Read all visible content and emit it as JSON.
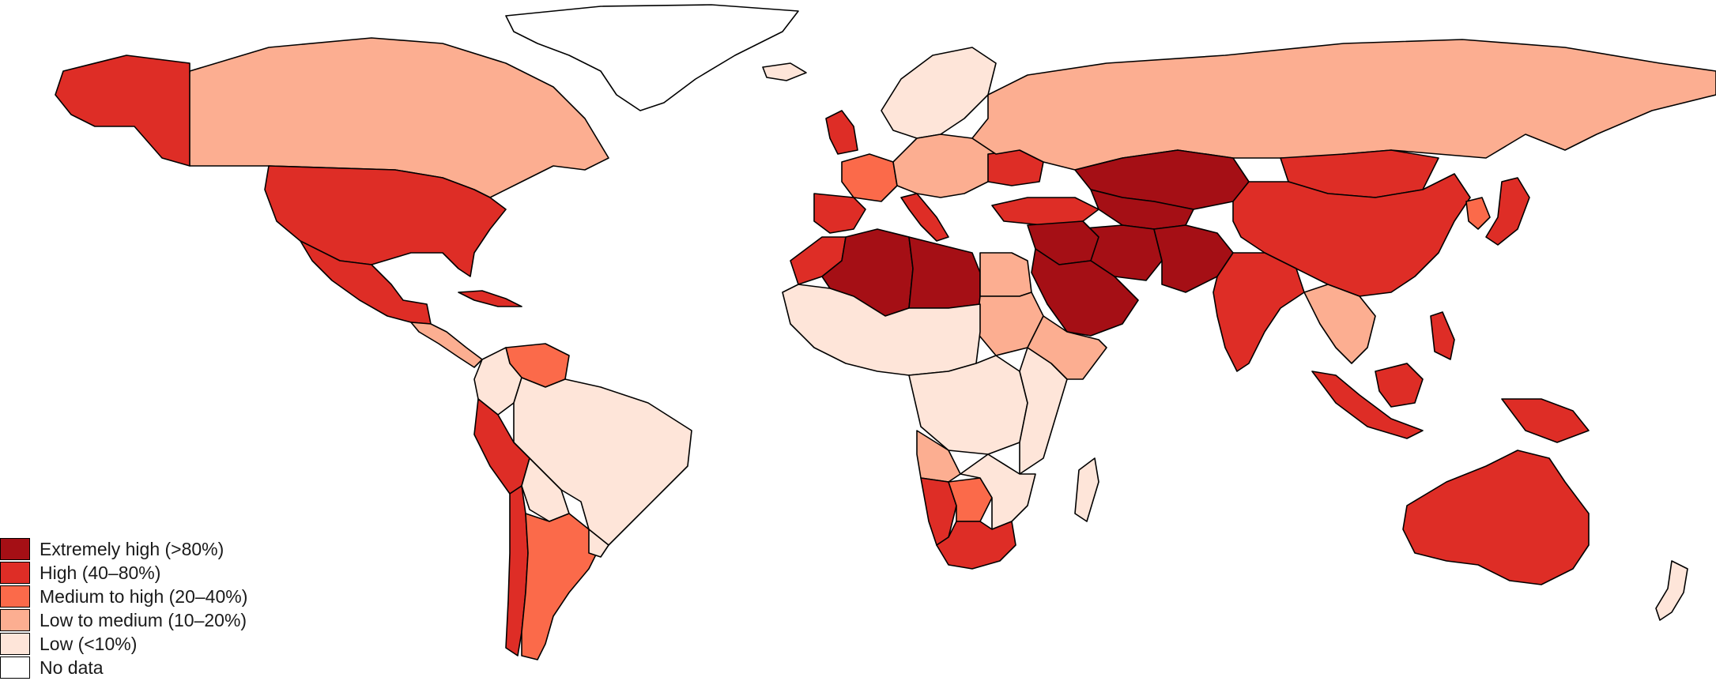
{
  "legend": {
    "items": [
      {
        "label": "Extremely high (>80%)",
        "color": "#a50f15"
      },
      {
        "label": "High (40–80%)",
        "color": "#de2d26"
      },
      {
        "label": "Medium to high (20–40%)",
        "color": "#fb6a4a"
      },
      {
        "label": "Low to medium (10–20%)",
        "color": "#fcae91"
      },
      {
        "label": "Low (<10%)",
        "color": "#fee5d9"
      },
      {
        "label": "No data",
        "color": "#ffffff"
      }
    ]
  },
  "regions": [
    {
      "name": "greenland",
      "category": "No data"
    },
    {
      "name": "alaska",
      "category": "High (40–80%)"
    },
    {
      "name": "canada",
      "category": "Low to medium (10–20%)"
    },
    {
      "name": "united-states",
      "category": "High (40–80%)"
    },
    {
      "name": "mexico",
      "category": "High (40–80%)"
    },
    {
      "name": "central-america",
      "category": "Low to medium (10–20%)"
    },
    {
      "name": "cuba",
      "category": "High (40–80%)"
    },
    {
      "name": "venezuela",
      "category": "Medium to high (20–40%)"
    },
    {
      "name": "colombia",
      "category": "Low (<10%)"
    },
    {
      "name": "brazil",
      "category": "Low (<10%)"
    },
    {
      "name": "peru",
      "category": "High (40–80%)"
    },
    {
      "name": "bolivia",
      "category": "Low (<10%)"
    },
    {
      "name": "chile",
      "category": "High (40–80%)"
    },
    {
      "name": "argentina",
      "category": "Medium to high (20–40%)"
    },
    {
      "name": "uruguay",
      "category": "Low (<10%)"
    },
    {
      "name": "iceland",
      "category": "Low (<10%)"
    },
    {
      "name": "united-kingdom",
      "category": "High (40–80%)"
    },
    {
      "name": "scandinavia",
      "category": "Low (<10%)"
    },
    {
      "name": "france",
      "category": "Medium to high (20–40%)"
    },
    {
      "name": "iberia",
      "category": "High (40–80%)"
    },
    {
      "name": "central-europe",
      "category": "Low to medium (10–20%)"
    },
    {
      "name": "italy",
      "category": "High (40–80%)"
    },
    {
      "name": "ukraine",
      "category": "High (40–80%)"
    },
    {
      "name": "russia",
      "category": "Low to medium (10–20%)"
    },
    {
      "name": "turkey",
      "category": "High (40–80%)"
    },
    {
      "name": "kazakhstan",
      "category": "Extremely high (>80%)"
    },
    {
      "name": "central-asia",
      "category": "Extremely high (>80%)"
    },
    {
      "name": "iran",
      "category": "Extremely high (>80%)"
    },
    {
      "name": "afghanistan-pakistan",
      "category": "Extremely high (>80%)"
    },
    {
      "name": "arabian-peninsula",
      "category": "Extremely high (>80%)"
    },
    {
      "name": "iraq-syria",
      "category": "Extremely high (>80%)"
    },
    {
      "name": "mongolia",
      "category": "High (40–80%)"
    },
    {
      "name": "china",
      "category": "High (40–80%)"
    },
    {
      "name": "india",
      "category": "High (40–80%)"
    },
    {
      "name": "japan",
      "category": "High (40–80%)"
    },
    {
      "name": "korea",
      "category": "Medium to high (20–40%)"
    },
    {
      "name": "mainland-southeast-asia",
      "category": "Low to medium (10–20%)"
    },
    {
      "name": "philippines",
      "category": "High (40–80%)"
    },
    {
      "name": "sumatra-java",
      "category": "High (40–80%)"
    },
    {
      "name": "borneo",
      "category": "High (40–80%)"
    },
    {
      "name": "new-guinea",
      "category": "High (40–80%)"
    },
    {
      "name": "australia",
      "category": "High (40–80%)"
    },
    {
      "name": "new-zealand",
      "category": "Low (<10%)"
    },
    {
      "name": "morocco",
      "category": "High (40–80%)"
    },
    {
      "name": "algeria",
      "category": "Extremely high (>80%)"
    },
    {
      "name": "libya",
      "category": "Extremely high (>80%)"
    },
    {
      "name": "egypt",
      "category": "Low to medium (10–20%)"
    },
    {
      "name": "sudan",
      "category": "Low to medium (10–20%)"
    },
    {
      "name": "sahel-west-africa",
      "category": "Low (<10%)"
    },
    {
      "name": "central-africa",
      "category": "Low (<10%)"
    },
    {
      "name": "east-africa",
      "category": "Low (<10%)"
    },
    {
      "name": "horn-of-africa",
      "category": "Low to medium (10–20%)"
    },
    {
      "name": "angola",
      "category": "Low to medium (10–20%)"
    },
    {
      "name": "namibia",
      "category": "High (40–80%)"
    },
    {
      "name": "botswana",
      "category": "Medium to high (20–40%)"
    },
    {
      "name": "south-africa",
      "category": "High (40–80%)"
    },
    {
      "name": "mozambique-zimbabwe",
      "category": "Low (<10%)"
    },
    {
      "name": "madagascar",
      "category": "Low (<10%)"
    }
  ]
}
